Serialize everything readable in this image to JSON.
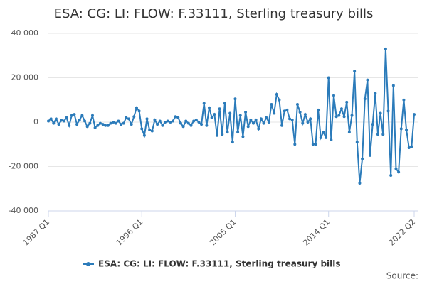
{
  "chart_data": {
    "type": "line",
    "title": "ESA: CG: LI: FLOW: F.33111, Sterling treasury bills",
    "source": "Source:",
    "categories": [
      "1987 Q1",
      null,
      null,
      null,
      null,
      null,
      null,
      null,
      null,
      null,
      null,
      null,
      null,
      null,
      null,
      null,
      null,
      null,
      null,
      null,
      null,
      null,
      null,
      null,
      null,
      null,
      null,
      null,
      null,
      null,
      null,
      null,
      null,
      null,
      null,
      null,
      "1996 Q1",
      null,
      null,
      null,
      null,
      null,
      null,
      null,
      null,
      null,
      null,
      null,
      null,
      null,
      null,
      null,
      null,
      null,
      null,
      null,
      null,
      null,
      null,
      null,
      null,
      null,
      null,
      null,
      null,
      null,
      null,
      null,
      null,
      null,
      null,
      null,
      "2005 Q1",
      null,
      null,
      null,
      null,
      null,
      null,
      null,
      null,
      null,
      null,
      null,
      null,
      null,
      null,
      null,
      null,
      null,
      null,
      null,
      null,
      null,
      null,
      null,
      null,
      null,
      null,
      null,
      null,
      null,
      null,
      null,
      null,
      null,
      null,
      null,
      "2014 Q1",
      null,
      null,
      null,
      null,
      null,
      null,
      null,
      null,
      null,
      null,
      null,
      null,
      null,
      null,
      null,
      null,
      null,
      null,
      null,
      null,
      null,
      null,
      null,
      null,
      null,
      null,
      null,
      null,
      null,
      null,
      null,
      null,
      "2022 Q2"
    ],
    "series": [
      {
        "name": "ESA: CG: LI: FLOW: F.33111, Sterling treasury bills",
        "color": "#2b7bba",
        "values": [
          500,
          1500,
          -500,
          1500,
          -1000,
          800,
          500,
          2000,
          -1500,
          3000,
          3500,
          -1000,
          1000,
          3000,
          500,
          -2000,
          -500,
          3000,
          -2500,
          -1500,
          -500,
          -1000,
          -1500,
          -1500,
          -500,
          0,
          -500,
          500,
          -1000,
          -500,
          2000,
          1500,
          -1000,
          2500,
          6500,
          5000,
          -3000,
          -6000,
          1500,
          -3500,
          -4000,
          1000,
          -1000,
          500,
          -1500,
          0,
          500,
          0,
          500,
          2500,
          2000,
          -500,
          -2000,
          500,
          -500,
          -1500,
          500,
          1000,
          0,
          -1000,
          8500,
          -1500,
          6500,
          2000,
          3500,
          -6000,
          6000,
          -5500,
          8500,
          -4500,
          4000,
          -9000,
          10500,
          -4500,
          3000,
          -6500,
          4500,
          -2000,
          1000,
          -500,
          1000,
          -3000,
          1500,
          -500,
          2000,
          0,
          8000,
          4000,
          12500,
          10000,
          -1500,
          5000,
          5500,
          1500,
          1000,
          -10000,
          8000,
          4500,
          -500,
          3500,
          0,
          1500,
          -10000,
          -10000,
          5500,
          -7000,
          -4500,
          -7000,
          20000,
          -8000,
          12000,
          2500,
          3000,
          6000,
          2500,
          9000,
          -4500,
          3000,
          23000,
          -9000,
          -27500,
          -16500,
          10500,
          19000,
          -15000,
          -1000,
          13000,
          -5500,
          4000,
          -5500,
          33000,
          5000,
          -24000,
          16500,
          -21000,
          -22500,
          -3000,
          10000,
          -3500,
          -11500,
          -11000,
          3500
        ]
      }
    ],
    "ylim": [
      -40000,
      40000
    ],
    "yticks": [
      {
        "value": -40000,
        "label": "-40 000"
      },
      {
        "value": -20000,
        "label": "-20 000"
      },
      0,
      {
        "value": 20000,
        "label": "20 000"
      },
      {
        "value": 40000,
        "label": "40 000"
      }
    ],
    "grid": true,
    "legend": "bottom"
  }
}
